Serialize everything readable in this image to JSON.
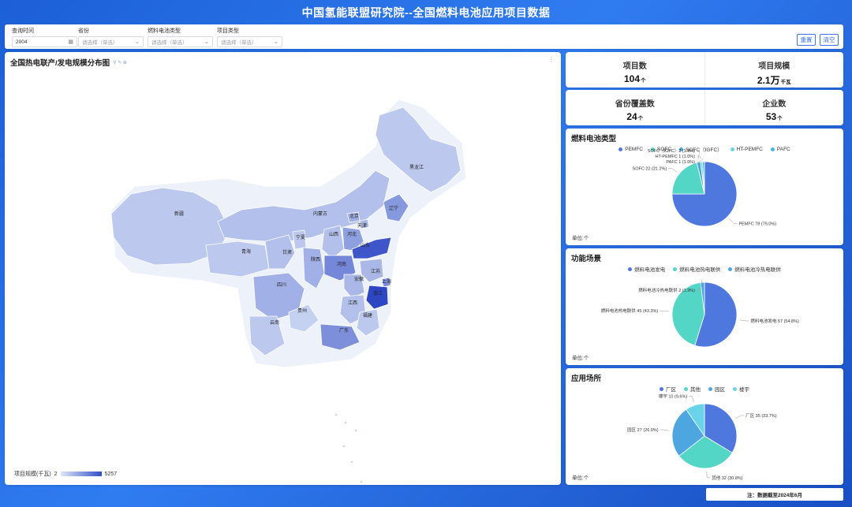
{
  "header": {
    "title": "中国氢能联盟研究院--全国燃料电池应用项目数据"
  },
  "filters": [
    {
      "label": "查询时间",
      "value": "2004",
      "icon": "calendar-icon",
      "has_value": true
    },
    {
      "label": "省份",
      "value": "请选择（单选）",
      "icon": "chevron-down-icon",
      "has_value": false
    },
    {
      "label": "燃料电池类型",
      "value": "请选择（单选）",
      "icon": "chevron-down-icon",
      "has_value": false
    },
    {
      "label": "项目类型",
      "value": "请选择（单选）",
      "icon": "",
      "has_value": false
    }
  ],
  "buttons": {
    "reset": "重置",
    "clear": "清空"
  },
  "map": {
    "title": "全国热电联产/发电规模分布图",
    "legend_label": "项目规模(千瓦)",
    "legend_min": "2",
    "legend_max": "5257",
    "provinces": [
      {
        "name": "黑龙江",
        "level": 0.2
      },
      {
        "name": "新疆",
        "level": 0.2
      },
      {
        "name": "内蒙古",
        "level": 0.25
      },
      {
        "name": "辽宁",
        "level": 0.5
      },
      {
        "name": "北京",
        "level": 0.35
      },
      {
        "name": "天津",
        "level": 0.3
      },
      {
        "name": "山西",
        "level": 0.25
      },
      {
        "name": "河北",
        "level": 0.45
      },
      {
        "name": "宁夏",
        "level": 0.2
      },
      {
        "name": "山东",
        "level": 0.9
      },
      {
        "name": "青海",
        "level": 0.2
      },
      {
        "name": "甘肃",
        "level": 0.25
      },
      {
        "name": "陕西",
        "level": 0.35
      },
      {
        "name": "河南",
        "level": 0.6
      },
      {
        "name": "江苏",
        "level": 0.3
      },
      {
        "name": "安徽",
        "level": 0.3
      },
      {
        "name": "上海",
        "level": 0.55
      },
      {
        "name": "四川",
        "level": 0.35
      },
      {
        "name": "浙江",
        "level": 1.0
      },
      {
        "name": "江西",
        "level": 0.25
      },
      {
        "name": "贵州",
        "level": 0.15
      },
      {
        "name": "福建",
        "level": 0.2
      },
      {
        "name": "云南",
        "level": 0.2
      },
      {
        "name": "广东",
        "level": 0.55
      }
    ]
  },
  "kpis": [
    {
      "label": "项目数",
      "value": "104",
      "unit": "个"
    },
    {
      "label": "项目规模",
      "value": "2.1万",
      "unit": "千瓦"
    },
    {
      "label": "省份覆盖数",
      "value": "24",
      "unit": "个"
    },
    {
      "label": "企业数",
      "value": "53",
      "unit": "个"
    }
  ],
  "charts": [
    {
      "title": "燃料电池类型",
      "unit": "单位:个"
    },
    {
      "title": "功能场景",
      "unit": "单位:个"
    },
    {
      "title": "应用场所",
      "unit": "单位:个"
    }
  ],
  "note": "注：数据截至2024年6月",
  "chart_data": [
    {
      "type": "pie",
      "title": "燃料电池类型",
      "legend": [
        "PEMFC",
        "SOFC",
        "SOFC（IGFC）",
        "HT-PEMFC",
        "PAFC"
      ],
      "categories": [
        "PEMFC",
        "SOFC",
        "SOFC（IGFC）",
        "HT-PEMFC",
        "PAFC"
      ],
      "values": [
        78,
        22,
        2,
        1,
        1
      ],
      "labels": [
        "PEMFC 78 (75.0%)",
        "SOFC 22 (21.2%)",
        "SOFC（IGFC）2 (1.9%)",
        "HT-PEMFC 1 (1.0%)",
        "PAFC 1 (1.0%)"
      ],
      "colors": [
        "#4f78df",
        "#54d6c7",
        "#4ea6e0",
        "#6ad3ea",
        "#3fb8d8"
      ]
    },
    {
      "type": "pie",
      "title": "功能场景",
      "legend": [
        "燃料电池发电",
        "燃料电池热电联供",
        "燃料电池冷热电联供"
      ],
      "categories": [
        "燃料电池发电",
        "燃料电池热电联供",
        "燃料电池冷热电联供"
      ],
      "values": [
        57,
        45,
        2
      ],
      "labels": [
        "燃料电池发电 57 (54.8%)",
        "燃料电池热电联供 45 (43.3%)",
        "燃料电池冷热电联供 2 (1.9%)"
      ],
      "colors": [
        "#4f78df",
        "#54d6c7",
        "#4ea6e0"
      ]
    },
    {
      "type": "pie",
      "title": "应用场所",
      "legend": [
        "厂区",
        "其他",
        "园区",
        "楼宇"
      ],
      "categories": [
        "厂区",
        "其他",
        "园区",
        "楼宇"
      ],
      "values": [
        35,
        32,
        27,
        10
      ],
      "labels": [
        "厂区 35 (33.7%)",
        "其他 32 (30.8%)",
        "园区 27 (26.0%)",
        "楼宇 10 (9.6%)"
      ],
      "colors": [
        "#4f78df",
        "#54d6c7",
        "#4ea6e0",
        "#6ad3ea"
      ]
    }
  ]
}
